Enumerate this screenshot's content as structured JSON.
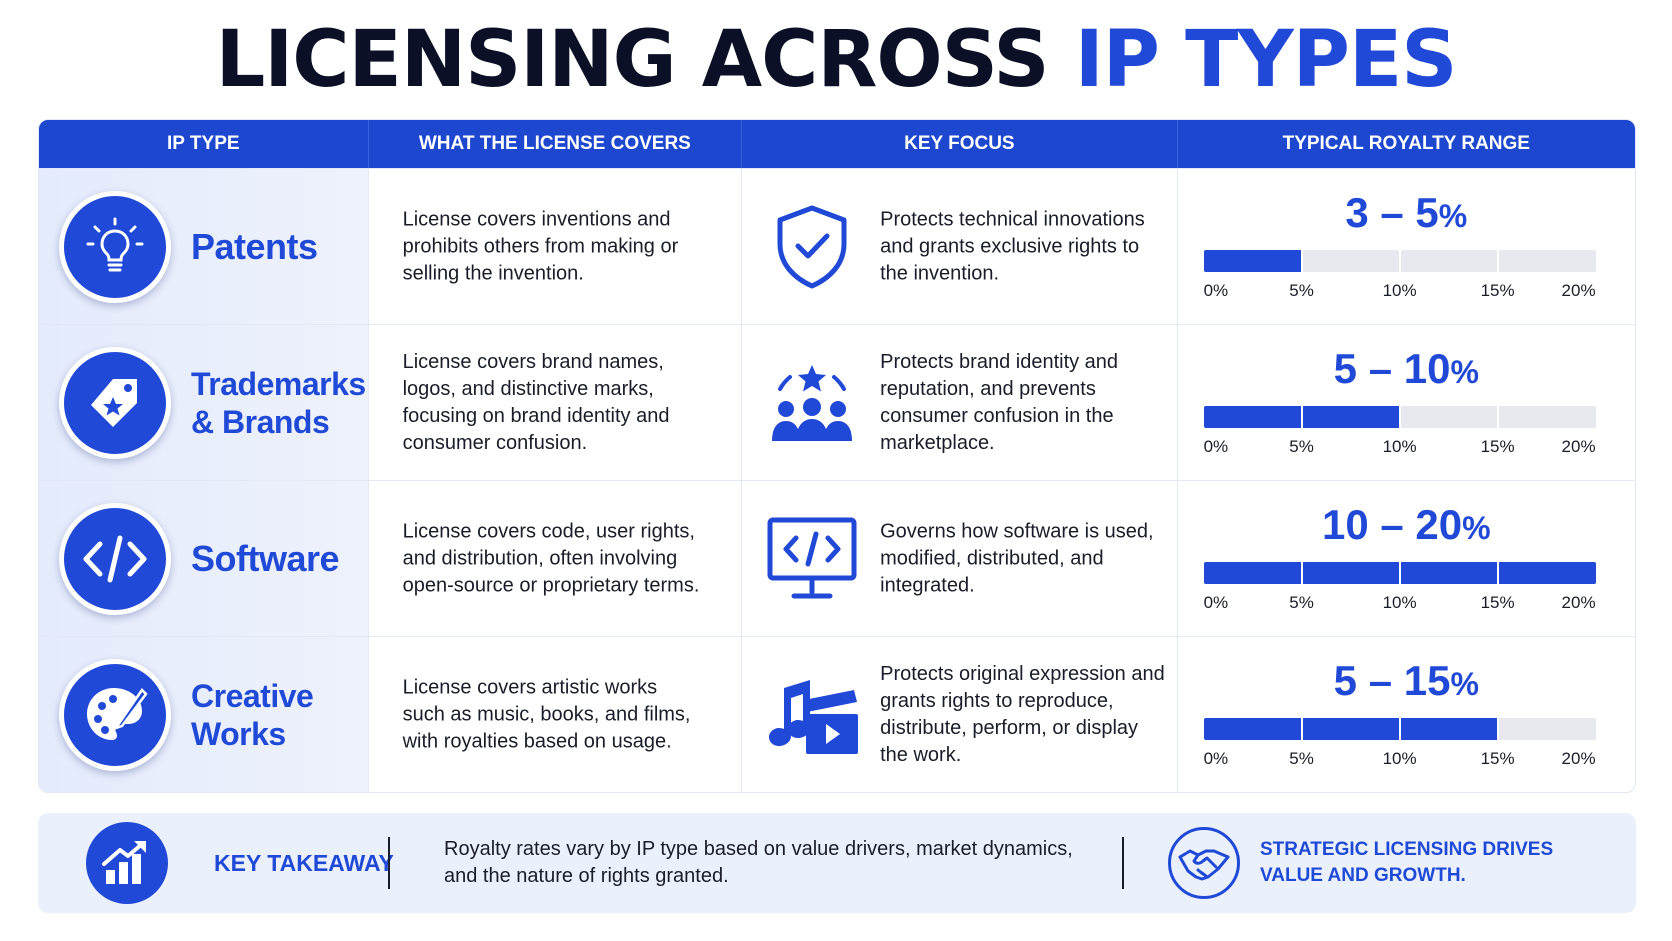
{
  "title": {
    "main": "LICENSING ACROSS ",
    "accent": "IP TYPES"
  },
  "colors": {
    "brand_blue": "#1f49d6",
    "header_blue": "#1e47cf",
    "dark_text": "#0b1026",
    "bar_track": "#e7e9ef"
  },
  "headers": {
    "ip_type": "IP TYPE",
    "covers": "WHAT THE LICENSE COVERS",
    "focus": "KEY FOCUS",
    "royalty": "TYPICAL ROYALTY RANGE"
  },
  "rows": [
    {
      "type": "Patents",
      "type_icon": "lightbulb-icon",
      "covers": "License covers inventions and prohibits others from making or selling the invention.",
      "focus_icon": "shield-check-icon",
      "focus": "Protects technical innovations and grants exclusive rights to the invention.",
      "royalty_range": "3 – 5",
      "royalty_unit": "%",
      "bar_fill_max_percent": 5
    },
    {
      "type": "Trademarks & Brands",
      "type_icon": "tag-star-icon",
      "covers": "License covers brand names, logos, and distinctive marks, focusing on brand identity and consumer confusion.",
      "focus_icon": "people-star-icon",
      "focus": "Protects brand identity and reputation, and prevents consumer confusion in the marketplace.",
      "royalty_range": "5 – 10",
      "royalty_unit": "%",
      "bar_fill_max_percent": 10
    },
    {
      "type": "Software",
      "type_icon": "code-icon",
      "covers": "License covers code, user rights, and distribution, often involving open-source or proprietary terms.",
      "focus_icon": "monitor-code-icon",
      "focus": "Governs how software is used, modified, distributed, and integrated.",
      "royalty_range": "10 – 20",
      "royalty_unit": "%",
      "bar_fill_max_percent": 20
    },
    {
      "type": "Creative Works",
      "type_icon": "palette-brush-icon",
      "covers": "License covers artistic works such as music, books, and films, with royalties based on usage.",
      "focus_icon": "music-clapper-icon",
      "focus": "Protects original expression and grants rights to reproduce, distribute, perform, or display the work.",
      "royalty_range": "5 – 15",
      "royalty_unit": "%",
      "bar_fill_max_percent": 15
    }
  ],
  "scale": {
    "max_percent": 20,
    "ticks": [
      "0%",
      "5%",
      "10%",
      "15%",
      "20%"
    ]
  },
  "footer": {
    "icon": "chart-up-icon",
    "label": "KEY TAKEAWAY",
    "text": "Royalty rates vary by IP type based on value drivers, market dynamics, and the nature of rights granted.",
    "strategy_icon": "handshake-icon",
    "strategy": "STRATEGIC LICENSING DRIVES VALUE AND GROWTH."
  }
}
